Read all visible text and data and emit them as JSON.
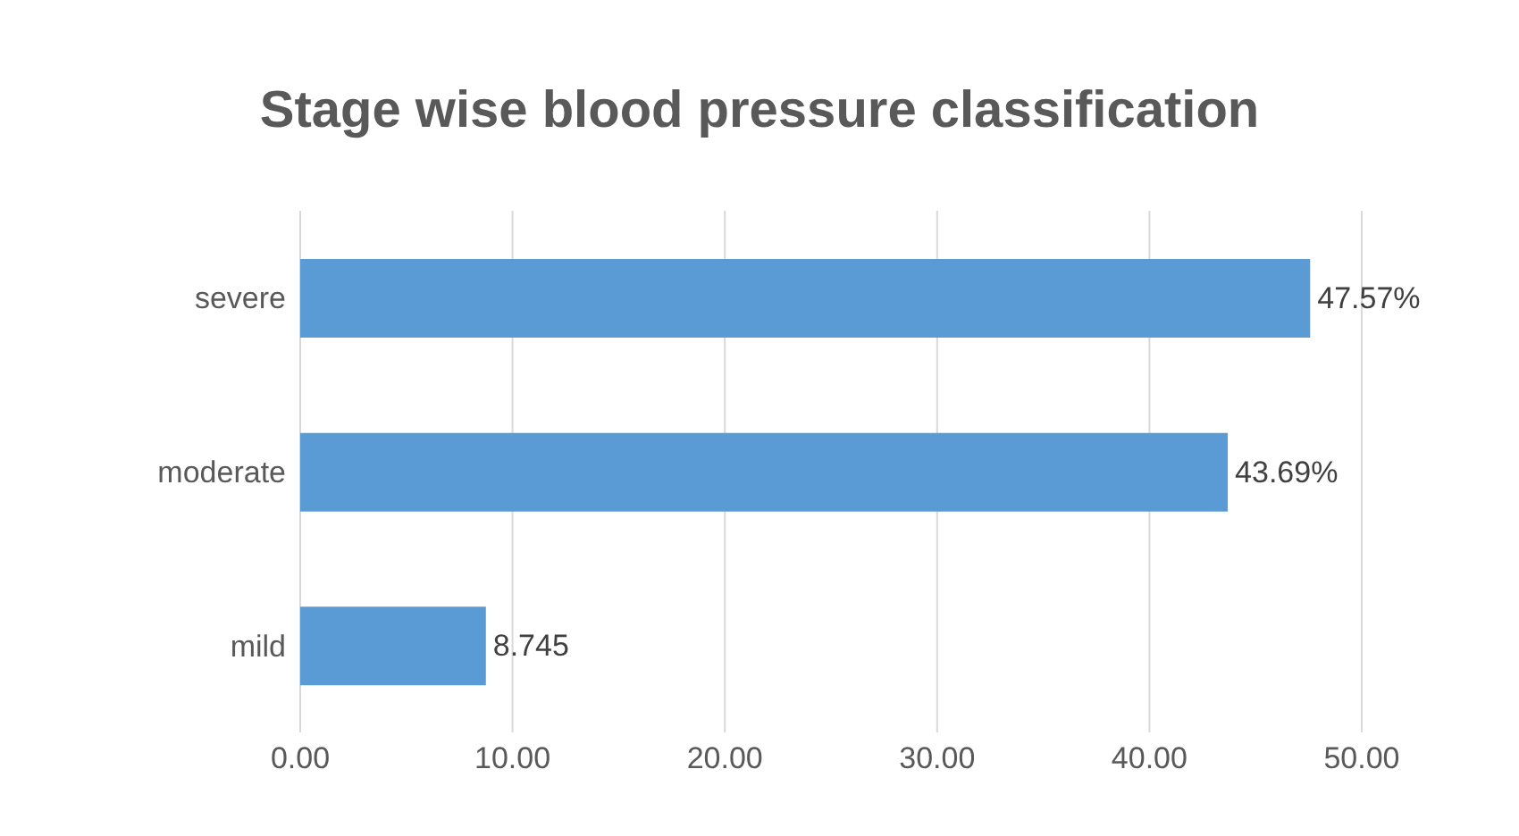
{
  "chart_data": {
    "type": "bar",
    "orientation": "horizontal",
    "title": "Stage wise blood pressure classification",
    "categories": [
      "severe",
      "moderate",
      "mild"
    ],
    "values": [
      47.57,
      43.69,
      8.745
    ],
    "value_labels": [
      "47.57%",
      "43.69%",
      "8.745"
    ],
    "color": "#5b9bd5",
    "xlim": [
      0,
      50
    ],
    "xticks": [
      {
        "value": 0,
        "label": "0.00"
      },
      {
        "value": 10,
        "label": "10.00"
      },
      {
        "value": 20,
        "label": "20.00"
      },
      {
        "value": 30,
        "label": "30.00"
      },
      {
        "value": 40,
        "label": "40.00"
      },
      {
        "value": 50,
        "label": "50.00"
      }
    ],
    "grid": "x"
  }
}
